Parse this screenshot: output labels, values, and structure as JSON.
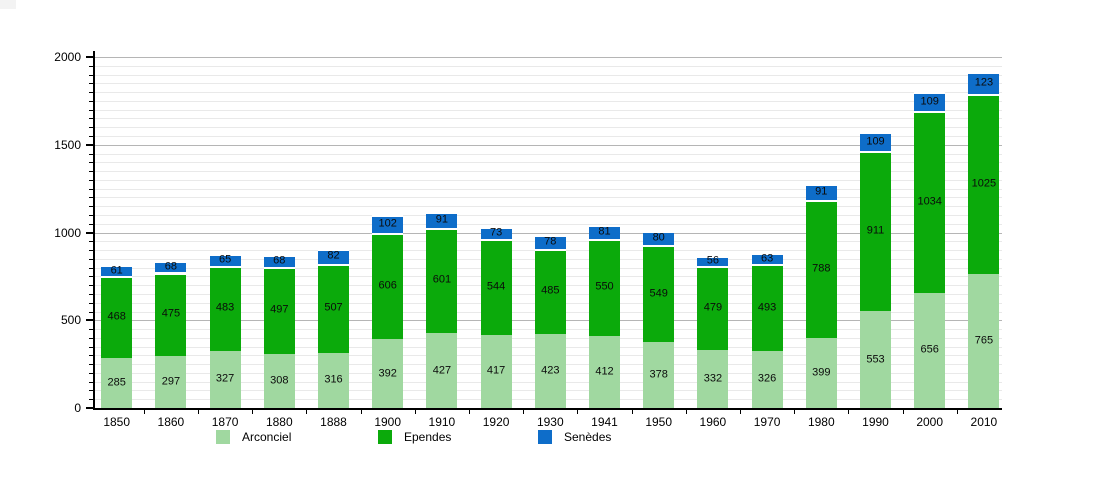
{
  "chart_data": {
    "type": "bar",
    "stacked": true,
    "title": "",
    "xlabel": "",
    "ylabel": "",
    "categories": [
      "1850",
      "1860",
      "1870",
      "1880",
      "1888",
      "1900",
      "1910",
      "1920",
      "1930",
      "1941",
      "1950",
      "1960",
      "1970",
      "1980",
      "1990",
      "2000",
      "2010"
    ],
    "series": [
      {
        "name": "Arconciel",
        "color": "#a0d8a0",
        "values": [
          285,
          297,
          327,
          308,
          316,
          392,
          427,
          417,
          423,
          412,
          378,
          332,
          326,
          399,
          553,
          656,
          765
        ]
      },
      {
        "name": "Ependes",
        "color": "#0baa0b",
        "values": [
          468,
          475,
          483,
          497,
          507,
          606,
          601,
          544,
          485,
          550,
          549,
          479,
          493,
          788,
          911,
          1034,
          1025
        ]
      },
      {
        "name": "Senèdes",
        "color": "#0e6dc9",
        "values": [
          61,
          68,
          65,
          68,
          82,
          102,
          91,
          73,
          78,
          81,
          80,
          56,
          63,
          91,
          109,
          109,
          123
        ]
      }
    ],
    "ylim": [
      0,
      2000
    ],
    "y_major_ticks": [
      0,
      500,
      1000,
      1500,
      2000
    ],
    "y_minor_step": 50,
    "grid": true,
    "legend_position": "bottom",
    "value_labels_shown": true,
    "colors": {
      "axis": "#000000",
      "grid_minor": "#e9e9e9",
      "grid_major": "#b5b5b5",
      "background": "#ffffff",
      "label_text": "#000000"
    }
  }
}
